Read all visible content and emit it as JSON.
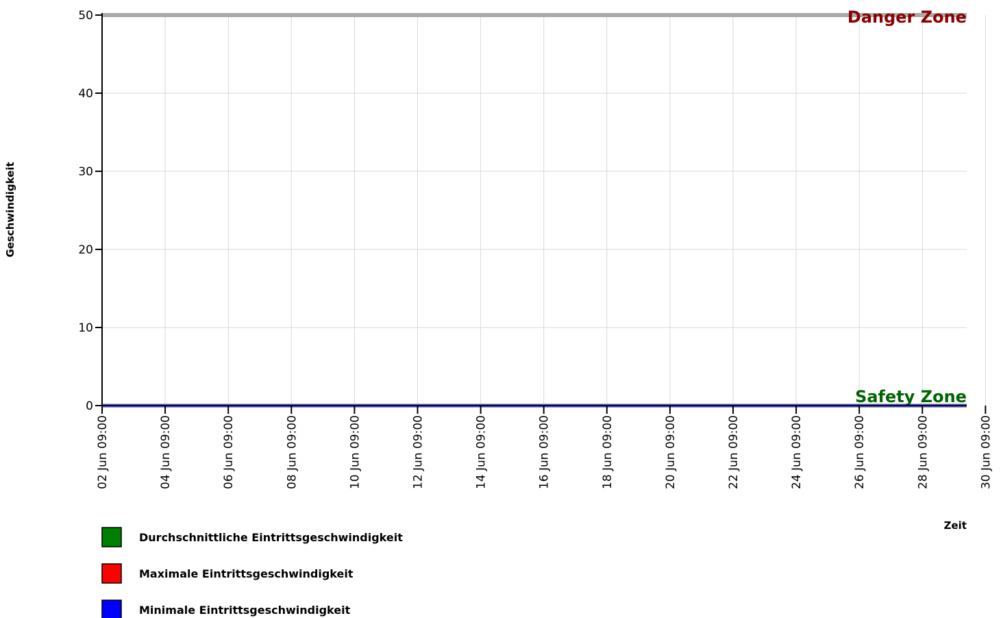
{
  "chart_data": {
    "type": "line",
    "title": "",
    "xlabel": "Zeit",
    "ylabel": "Geschwindigkeit",
    "ylim": [
      0,
      50
    ],
    "yticks": [
      0,
      10,
      20,
      30,
      40,
      50
    ],
    "xticks": [
      "02 Jun 09:00",
      "04 Jun 09:00",
      "06 Jun 09:00",
      "08 Jun 09:00",
      "10 Jun 09:00",
      "12 Jun 09:00",
      "14 Jun 09:00",
      "16 Jun 09:00",
      "18 Jun 09:00",
      "20 Jun 09:00",
      "22 Jun 09:00",
      "24 Jun 09:00",
      "26 Jun 09:00",
      "28 Jun 09:00",
      "30 Jun 09:00"
    ],
    "grid": true,
    "legend_position": "bottom-left",
    "thresholds": [
      {
        "label": "Danger Zone",
        "value": 50,
        "line_color": "#aaaaaa",
        "label_color": "#8b0000"
      },
      {
        "label": "Safety Zone",
        "value": 0,
        "line_color": "#aaaaaa",
        "label_color": "#006400"
      }
    ],
    "series": [
      {
        "name": "Durchschnittliche Eintrittsgeschwindigkeit",
        "color": "#008000",
        "x_start": "02 Jun 09:00",
        "x_end": "29 Jun 09:00",
        "values": [
          0,
          0
        ]
      },
      {
        "name": "Maximale Eintrittsgeschwindigkeit",
        "color": "#ff0000",
        "x_start": "02 Jun 09:00",
        "x_end": "29 Jun 09:00",
        "values": [
          0,
          0
        ]
      },
      {
        "name": "Minimale Eintrittsgeschwindigkeit",
        "color": "#0000ff",
        "x_start": "02 Jun 09:00",
        "x_end": "29 Jun 09:00",
        "values": [
          0,
          0
        ]
      }
    ]
  }
}
